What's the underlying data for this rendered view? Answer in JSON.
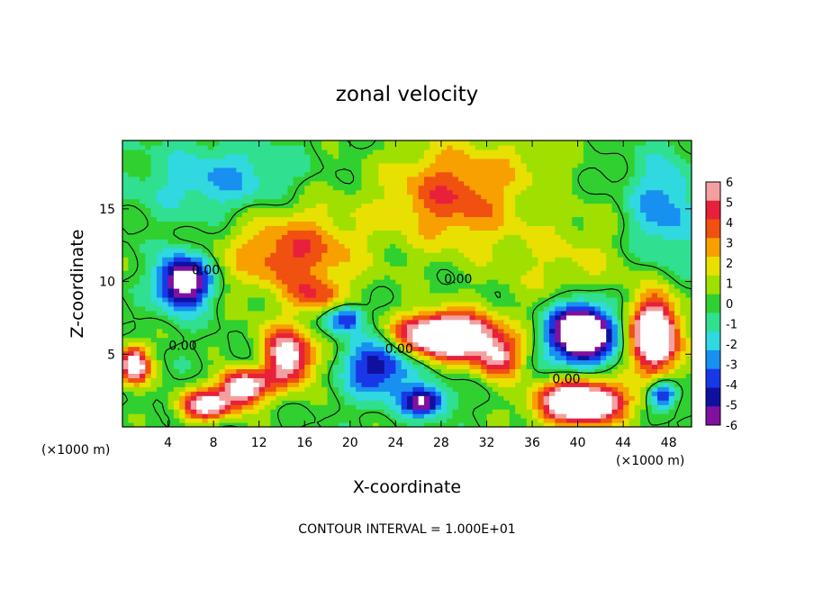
{
  "chart_data": {
    "type": "heatmap",
    "title": "zonal velocity",
    "xlabel": "X-coordinate",
    "ylabel": "Z-coordinate",
    "x_unit_left": "(×1000 m)",
    "x_unit_right": "(×1000 m)",
    "footer": "CONTOUR INTERVAL = 1.000E+01",
    "xlim": [
      0,
      50
    ],
    "ylim": [
      0,
      19.7
    ],
    "x_ticks": [
      4,
      8,
      12,
      16,
      20,
      24,
      28,
      32,
      36,
      40,
      44,
      48
    ],
    "y_ticks": [
      5,
      10,
      15
    ],
    "colorbar": {
      "range": [
        -6,
        6
      ],
      "labels": [
        "6",
        "5",
        "4",
        "3",
        "2",
        "1",
        "0",
        "-1",
        "-2",
        "-3",
        "-4",
        "-5",
        "-6"
      ],
      "colors": [
        "#f4a0a0",
        "#e8203a",
        "#f05010",
        "#f7a000",
        "#e8e000",
        "#a0e000",
        "#30d030",
        "#30e090",
        "#30d8e0",
        "#1890f0",
        "#1838e8",
        "#1010a0",
        "#8010a0"
      ]
    },
    "contour_labels": [
      {
        "text": "0.00",
        "x": 29.5,
        "y": 10.2
      },
      {
        "text": "0.00.",
        "x": 7.5,
        "y": 10.8
      },
      {
        "text": "0.00",
        "x": 5.3,
        "y": 5.6
      },
      {
        "text": "0.00",
        "x": 24.3,
        "y": 5.4
      },
      {
        "text": "0.00",
        "x": 39.0,
        "y": 3.3
      }
    ],
    "features": [
      {
        "x": 14,
        "y": 4.7,
        "sx": 2.6,
        "sy": 1.8,
        "a": 10
      },
      {
        "x": 10.5,
        "y": 2.8,
        "sx": 2.0,
        "sy": 1.3,
        "a": 8
      },
      {
        "x": 12.5,
        "y": 4.5,
        "sx": 2.5,
        "sy": 1.3,
        "a": -5
      },
      {
        "x": 7.2,
        "y": 1.5,
        "sx": 2.2,
        "sy": 1.0,
        "a": 7
      },
      {
        "x": 5.4,
        "y": 10.0,
        "sx": 2.2,
        "sy": 1.8,
        "a": -8
      },
      {
        "x": 1.0,
        "y": 4.3,
        "sx": 1.3,
        "sy": 1.3,
        "a": 8
      },
      {
        "x": 28.5,
        "y": 6.3,
        "sx": 4.2,
        "sy": 1.5,
        "a": 11
      },
      {
        "x": 33,
        "y": 4.7,
        "sx": 2.0,
        "sy": 1.4,
        "a": 5
      },
      {
        "x": 22.5,
        "y": 4.2,
        "sx": 3.0,
        "sy": 2.0,
        "a": -5
      },
      {
        "x": 19.5,
        "y": 7.5,
        "sx": 1.5,
        "sy": 0.9,
        "a": -5
      },
      {
        "x": 26.5,
        "y": 1.8,
        "sx": 2.0,
        "sy": 1.0,
        "a": -6
      },
      {
        "x": 40.3,
        "y": 6.5,
        "sx": 2.6,
        "sy": 1.9,
        "a": -11
      },
      {
        "x": 40.3,
        "y": 1.7,
        "sx": 3.6,
        "sy": 1.4,
        "a": 11
      },
      {
        "x": 46.8,
        "y": 6.3,
        "sx": 2.0,
        "sy": 2.5,
        "a": 10
      },
      {
        "x": 47.5,
        "y": 2.3,
        "sx": 1.2,
        "sy": 0.9,
        "a": -5
      },
      {
        "x": 29,
        "y": 16.0,
        "sx": 5.5,
        "sy": 3.5,
        "a": 4
      },
      {
        "x": 14.5,
        "y": 11.7,
        "sx": 5.5,
        "sy": 2.5,
        "a": 3
      },
      {
        "x": 17,
        "y": 9.0,
        "sx": 2.5,
        "sy": 1.2,
        "a": 3
      },
      {
        "x": 47.5,
        "y": 15.0,
        "sx": 3.0,
        "sy": 3.5,
        "a": -3
      },
      {
        "x": 9.0,
        "y": 17.0,
        "sx": 7.0,
        "sy": 2.5,
        "a": -2.5
      },
      {
        "x": 16.0,
        "y": 13.5,
        "sx": 6.0,
        "sy": 4.0,
        "a": 1.5
      },
      {
        "x": 39.0,
        "y": 11.5,
        "sx": 6.5,
        "sy": 3.5,
        "a": 1.5
      },
      {
        "x": 36.0,
        "y": 18.5,
        "sx": 4.0,
        "sy": 2.0,
        "a": 1.0
      }
    ]
  }
}
